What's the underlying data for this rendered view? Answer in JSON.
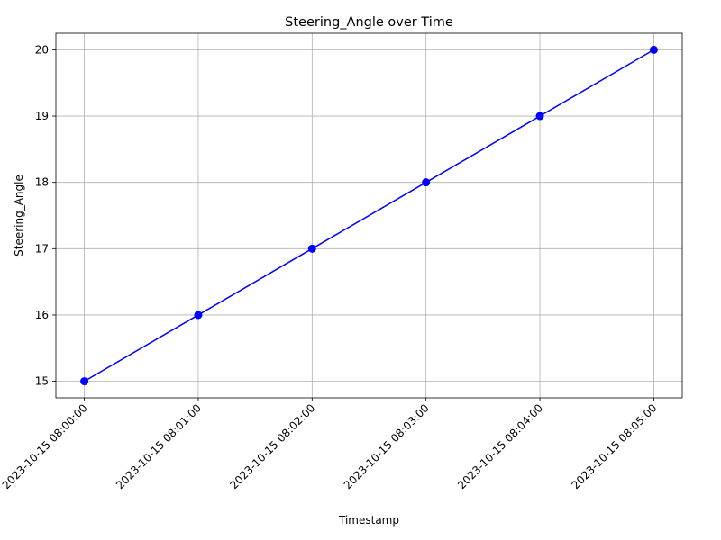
{
  "chart_data": {
    "type": "line",
    "title": "Steering_Angle over Time",
    "xlabel": "Timestamp",
    "ylabel": "Steering_Angle",
    "x": [
      "2023-10-15 08:00:00",
      "2023-10-15 08:01:00",
      "2023-10-15 08:02:00",
      "2023-10-15 08:03:00",
      "2023-10-15 08:04:00",
      "2023-10-15 08:05:00"
    ],
    "series": [
      {
        "values": [
          15,
          16,
          17,
          18,
          19,
          20
        ],
        "color": "#0000ff",
        "marker": "circle"
      }
    ],
    "ylim": [
      14.75,
      20.25
    ],
    "yticks": [
      "15",
      "16",
      "17",
      "18",
      "19",
      "20"
    ],
    "grid": true,
    "x_tick_rotation": "45 degrees"
  }
}
